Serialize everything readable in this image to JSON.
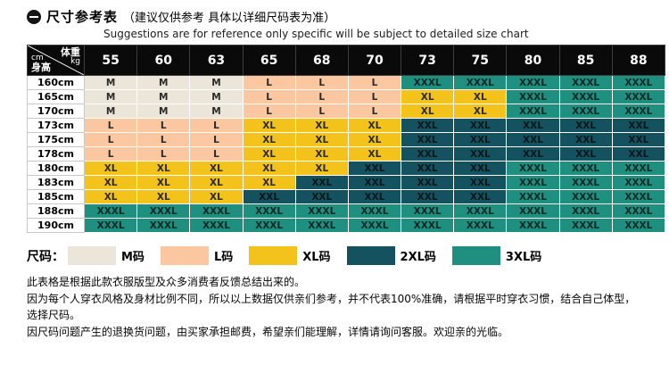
{
  "header": {
    "icon": "minus-circle-icon",
    "title": "尺寸参考表",
    "subtitle": "（建议仅供参考 具体以详细尺码表为准）",
    "subtitle_en": "Suggestions are for reference only specific will be subject to detailed size chart"
  },
  "table": {
    "corner": {
      "weight_label": "体重",
      "weight_unit": "kg",
      "height_label": "身高",
      "height_unit": "cm"
    }
  },
  "chart_data": {
    "type": "table",
    "title": "尺寸参考表",
    "columns_header": "体重 (kg)",
    "rows_header": "身高 (cm)",
    "columns": [
      "55",
      "60",
      "63",
      "65",
      "68",
      "70",
      "73",
      "75",
      "80",
      "85",
      "88"
    ],
    "rows": [
      "160cm",
      "165cm",
      "170cm",
      "173cm",
      "175cm",
      "178cm",
      "180cm",
      "183cm",
      "185cm",
      "188cm",
      "190cm"
    ],
    "values": [
      [
        "M",
        "M",
        "M",
        "L",
        "L",
        "L",
        "XXXL",
        "XXXL",
        "XXXL",
        "XXXL",
        "XXXL"
      ],
      [
        "M",
        "M",
        "M",
        "L",
        "L",
        "L",
        "XL",
        "XL",
        "XXXL",
        "XXXL",
        "XXXL"
      ],
      [
        "M",
        "M",
        "M",
        "L",
        "L",
        "L",
        "XL",
        "XL",
        "XXXL",
        "XXXL",
        "XXXL"
      ],
      [
        "L",
        "L",
        "L",
        "XL",
        "XL",
        "XL",
        "XXL",
        "XXL",
        "XXL",
        "XXL",
        "XXL"
      ],
      [
        "L",
        "L",
        "L",
        "XL",
        "XL",
        "XL",
        "XXL",
        "XXL",
        "XXL",
        "XXL",
        "XXL"
      ],
      [
        "L",
        "L",
        "L",
        "XL",
        "XL",
        "XL",
        "XXL",
        "XXL",
        "XXL",
        "XXL",
        "XXL"
      ],
      [
        "XL",
        "XL",
        "XL",
        "XL",
        "XL",
        "XXL",
        "XXL",
        "XXL",
        "XXXL",
        "XXXL",
        "XXXL"
      ],
      [
        "XL",
        "XL",
        "XL",
        "XL",
        "XXL",
        "XXL",
        "XXL",
        "XXL",
        "XXXL",
        "XXXL",
        "XXXL"
      ],
      [
        "XL",
        "XL",
        "XL",
        "XXL",
        "XXL",
        "XXL",
        "XXL",
        "XXL",
        "XXXL",
        "XXXL",
        "XXXL"
      ],
      [
        "XXXL",
        "XXXL",
        "XXXL",
        "XXXL",
        "XXXL",
        "XXXL",
        "XXXL",
        "XXXL",
        "XXXL",
        "XXXL",
        "XXXL"
      ],
      [
        "XXXL",
        "XXXL",
        "XXXL",
        "XXXL",
        "XXXL",
        "XXXL",
        "XXXL",
        "XXXL",
        "XXXL",
        "XXXL",
        "XXXL"
      ]
    ]
  },
  "size_colors": {
    "M": "#ebe6d9",
    "L": "#fac7a1",
    "XL": "#f3c31b",
    "XXL": "#15525f",
    "XXXL": "#1f8f80"
  },
  "cell_text": {
    "light": "#2a2a2a",
    "dark": "rgba(0,0,0,0.72)"
  },
  "header_colors": {
    "header_bg": "#0a0a0a",
    "header_text": "#ffffff"
  },
  "legend": {
    "label": "尺码：",
    "items": [
      {
        "label": "M码",
        "size": "M"
      },
      {
        "label": "L码",
        "size": "L"
      },
      {
        "label": "XL码",
        "size": "XL"
      },
      {
        "label": "2XL码",
        "size": "XXL"
      },
      {
        "label": "3XL码",
        "size": "XXXL"
      }
    ]
  },
  "footer_lines": [
    "此表格是根据此款衣服版型及众多消费者反馈总结出来的。",
    "因为每个人穿衣风格及身材比例不同，所以以上数据仅供亲们参考，并不代表100%准确，请根据平时穿衣习惯，结合自己体型，选择尺码。",
    "因尺码问题产生的退换货问题，由买家承担邮费，希望亲们能理解，详情请询问客服。欢迎亲的光临。"
  ]
}
